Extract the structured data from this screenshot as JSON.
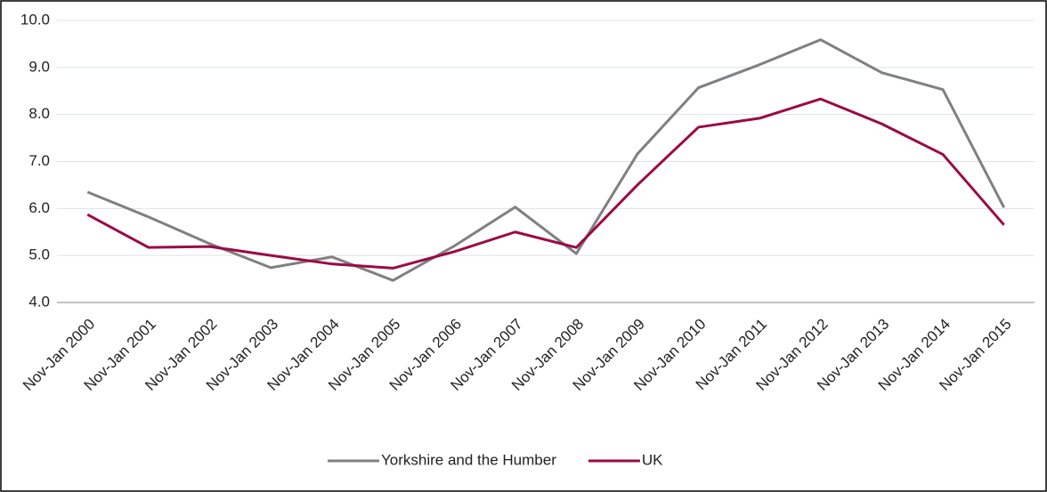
{
  "chart_data": {
    "type": "line",
    "categories": [
      "Nov-Jan 2000",
      "Nov-Jan 2001",
      "Nov-Jan 2002",
      "Nov-Jan 2003",
      "Nov-Jan 2004",
      "Nov-Jan 2005",
      "Nov-Jan 2006",
      "Nov-Jan 2007",
      "Nov-Jan 2008",
      "Nov-Jan 2009",
      "Nov-Jan 2010",
      "Nov-Jan 2011",
      "Nov-Jan 2012",
      "Nov-Jan 2013",
      "Nov-Jan 2014",
      "Nov-Jan 2015"
    ],
    "series": [
      {
        "name": "Yorkshire and the Humber",
        "color": "#808080",
        "values": [
          6.35,
          5.82,
          5.25,
          4.74,
          4.97,
          4.47,
          5.2,
          6.03,
          5.04,
          7.16,
          8.57,
          9.06,
          9.59,
          8.89,
          8.53,
          6.02
        ]
      },
      {
        "name": "UK",
        "color": "#9b0a45",
        "values": [
          5.87,
          5.17,
          5.19,
          5.0,
          4.82,
          4.73,
          5.08,
          5.5,
          5.17,
          6.5,
          7.73,
          7.92,
          8.33,
          7.8,
          7.15,
          5.65
        ]
      }
    ],
    "ylim": [
      4,
      10
    ],
    "yticks": [
      {
        "value": 4,
        "label": "4.0"
      },
      {
        "value": 5,
        "label": "5.0"
      },
      {
        "value": 6,
        "label": "6.0"
      },
      {
        "value": 7,
        "label": "7.0"
      },
      {
        "value": 8,
        "label": "8.0"
      },
      {
        "value": 9,
        "label": "9.0"
      },
      {
        "value": 10,
        "label": "10.0"
      }
    ],
    "grid": true,
    "legend": "bottom"
  }
}
